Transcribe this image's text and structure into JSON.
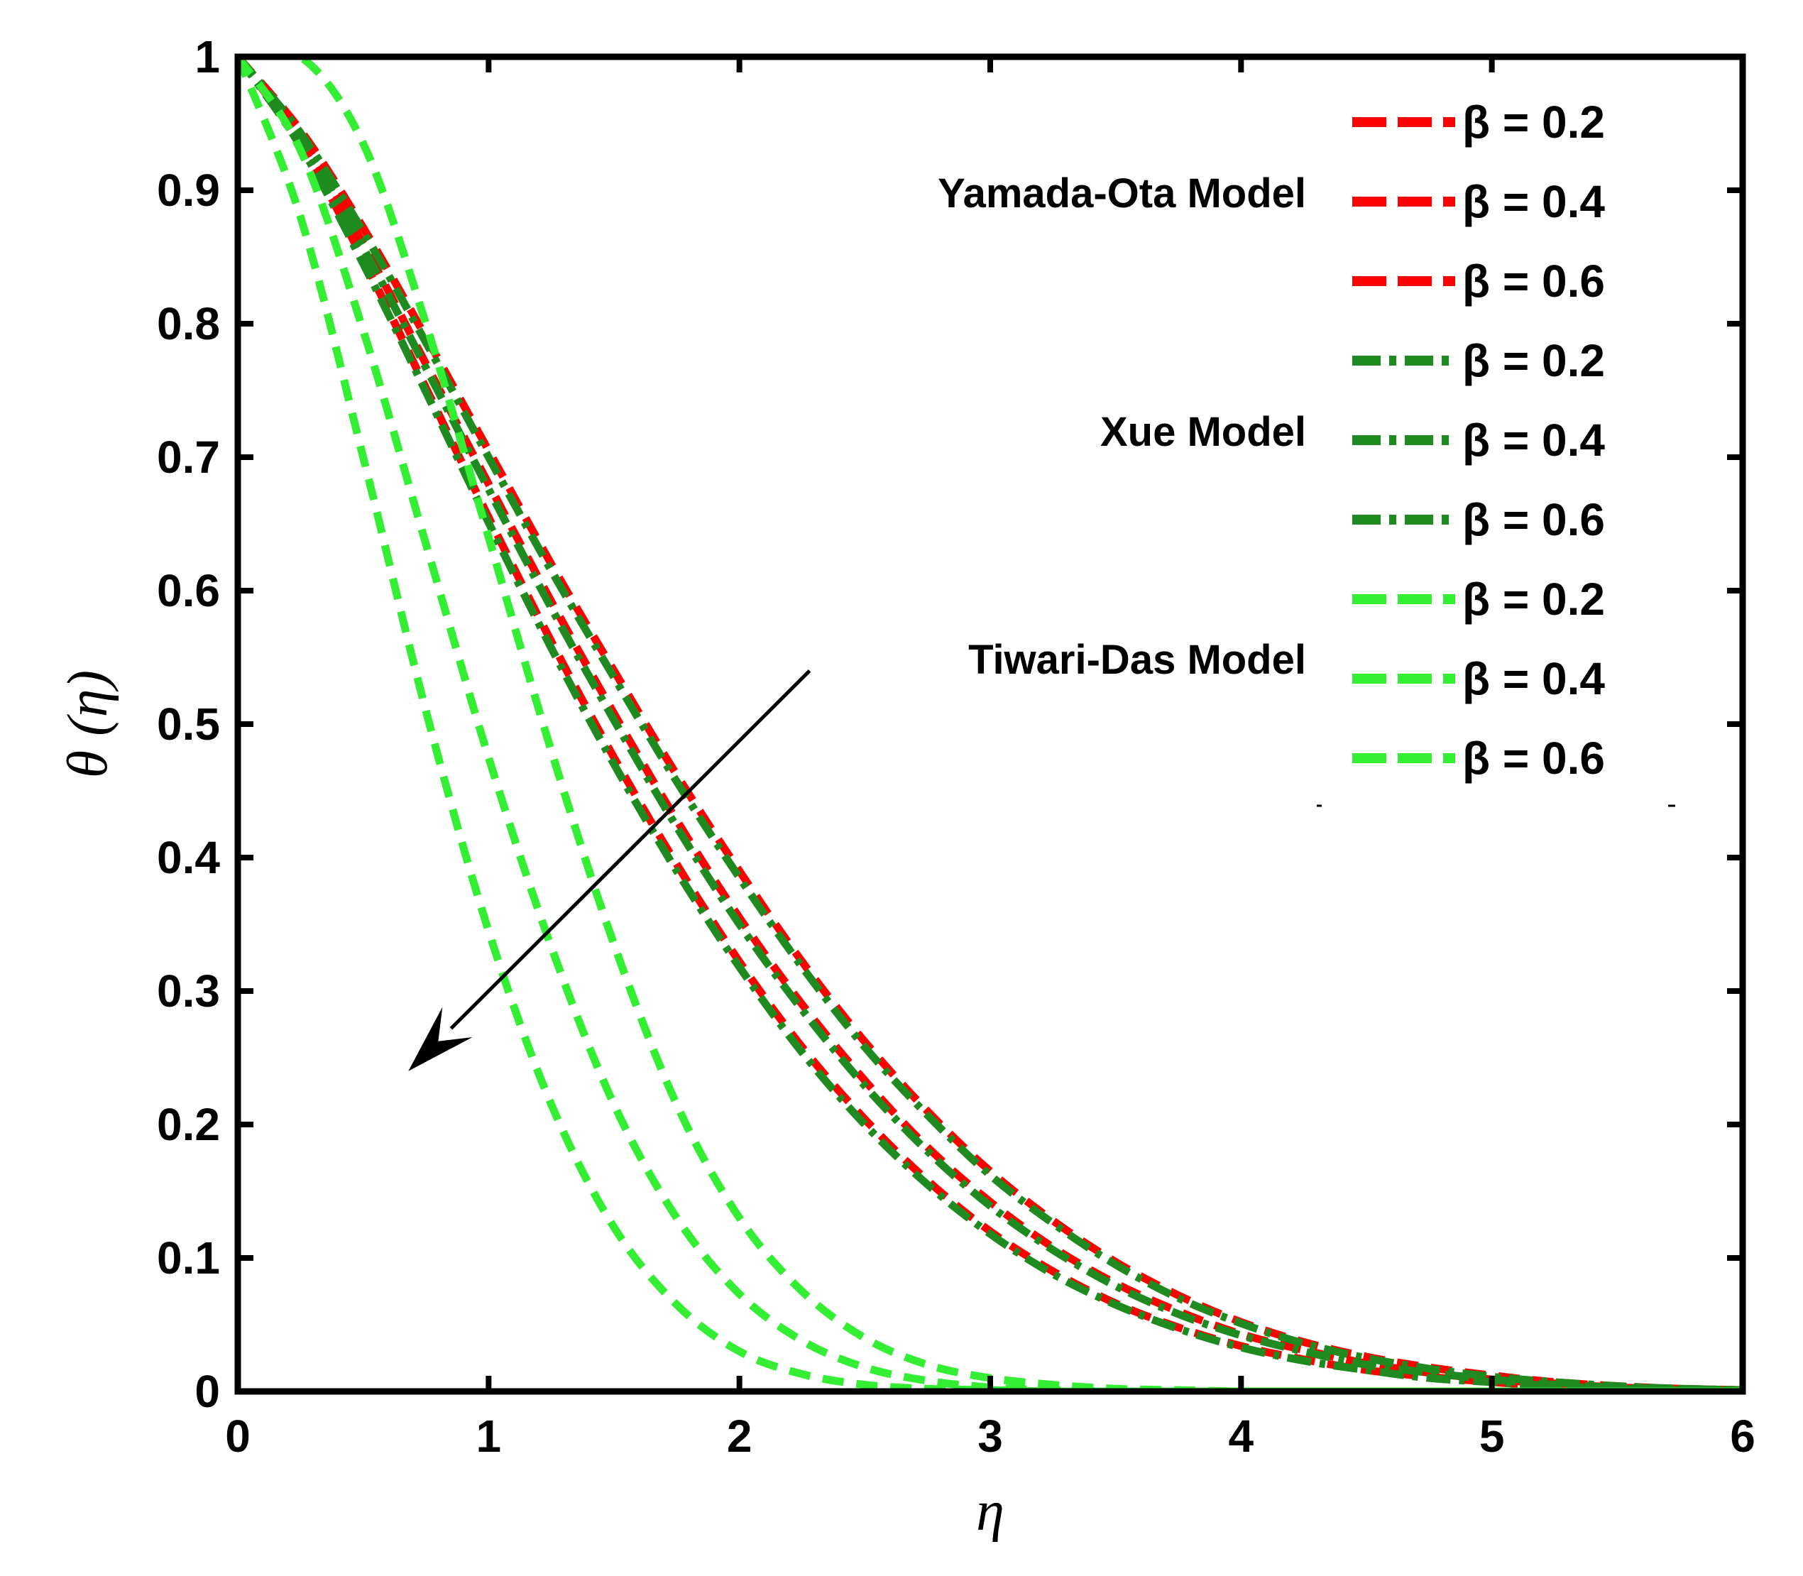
{
  "chart_data": {
    "type": "line",
    "title": "",
    "xlabel": "η",
    "ylabel": "θ (η)",
    "xlim": [
      0,
      6
    ],
    "ylim": [
      0,
      1
    ],
    "grid": false,
    "xticks": [
      "0",
      "1",
      "2",
      "3",
      "4",
      "5",
      "6"
    ],
    "yticks": [
      "0",
      "0.1",
      "0.2",
      "0.3",
      "0.4",
      "0.5",
      "0.6",
      "0.7",
      "0.8",
      "0.9",
      "1"
    ],
    "x": [
      0,
      0.25,
      0.5,
      0.75,
      1,
      1.25,
      1.5,
      1.75,
      2,
      2.25,
      2.5,
      2.75,
      3,
      3.25,
      3.5,
      3.75,
      4,
      4.25,
      4.5,
      4.75,
      5,
      5.25,
      5.5,
      5.75,
      6
    ],
    "legend_position": "top-right",
    "groups": [
      {
        "label": "Yamada-Ota Model",
        "color": "#ff0000",
        "style": "dash"
      },
      {
        "label": "Xue Model",
        "color": "#1f8a1f",
        "style": "dashdot"
      },
      {
        "label": "Tiwari-Das Model",
        "color": "#33ee33",
        "style": "dash"
      }
    ],
    "series": [
      {
        "name": "β = 0.2",
        "model": "Yamada-Ota Model",
        "color": "#ff0000",
        "style": "dash",
        "values": [
          1.0,
          0.945,
          0.872,
          0.79,
          0.705,
          0.62,
          0.54,
          0.462,
          0.39,
          0.322,
          0.262,
          0.21,
          0.165,
          0.128,
          0.097,
          0.072,
          0.052,
          0.037,
          0.026,
          0.018,
          0.012,
          0.007,
          0.004,
          0.002,
          0.001
        ]
      },
      {
        "name": "β = 0.4",
        "model": "Yamada-Ota Model",
        "color": "#ff0000",
        "style": "dash",
        "values": [
          1.0,
          0.94,
          0.86,
          0.77,
          0.68,
          0.592,
          0.508,
          0.428,
          0.355,
          0.29,
          0.233,
          0.183,
          0.142,
          0.108,
          0.081,
          0.06,
          0.043,
          0.031,
          0.021,
          0.014,
          0.009,
          0.006,
          0.003,
          0.002,
          0.001
        ]
      },
      {
        "name": "β = 0.6",
        "model": "Yamada-Ota Model",
        "color": "#ff0000",
        "style": "dash",
        "values": [
          1.0,
          0.935,
          0.848,
          0.752,
          0.655,
          0.562,
          0.475,
          0.395,
          0.322,
          0.258,
          0.204,
          0.158,
          0.12,
          0.09,
          0.066,
          0.048,
          0.034,
          0.024,
          0.016,
          0.011,
          0.007,
          0.004,
          0.003,
          0.001,
          0.001
        ]
      },
      {
        "name": "β = 0.2",
        "model": "Xue Model",
        "color": "#1f8a1f",
        "style": "dashdot",
        "values": [
          1.0,
          0.943,
          0.869,
          0.786,
          0.7,
          0.615,
          0.535,
          0.457,
          0.385,
          0.318,
          0.258,
          0.207,
          0.162,
          0.126,
          0.095,
          0.07,
          0.051,
          0.036,
          0.025,
          0.017,
          0.011,
          0.007,
          0.004,
          0.002,
          0.001
        ]
      },
      {
        "name": "β = 0.4",
        "model": "Xue Model",
        "color": "#1f8a1f",
        "style": "dashdot",
        "values": [
          1.0,
          0.938,
          0.857,
          0.767,
          0.676,
          0.587,
          0.503,
          0.423,
          0.35,
          0.286,
          0.229,
          0.18,
          0.139,
          0.106,
          0.079,
          0.058,
          0.042,
          0.03,
          0.02,
          0.014,
          0.009,
          0.005,
          0.003,
          0.002,
          0.001
        ]
      },
      {
        "name": "β = 0.6",
        "model": "Xue Model",
        "color": "#1f8a1f",
        "style": "dashdot",
        "values": [
          1.0,
          0.933,
          0.845,
          0.749,
          0.651,
          0.557,
          0.47,
          0.39,
          0.318,
          0.254,
          0.2,
          0.155,
          0.118,
          0.088,
          0.065,
          0.047,
          0.033,
          0.023,
          0.016,
          0.01,
          0.007,
          0.004,
          0.002,
          0.001,
          0.001
        ]
      },
      {
        "name": "β = 0.2",
        "model": "Tiwari-Das Model",
        "color": "#33ee33",
        "style": "dash",
        "values": [
          1.0,
          1.0,
          0.935,
          0.8,
          0.64,
          0.48,
          0.335,
          0.215,
          0.13,
          0.075,
          0.04,
          0.02,
          0.01,
          0.005,
          0.002,
          0.001,
          0.0,
          0.0,
          0.0,
          0.0,
          0.0,
          0.0,
          0.0,
          0.0,
          0.0
        ]
      },
      {
        "name": "β = 0.4",
        "model": "Tiwari-Das Model",
        "color": "#33ee33",
        "style": "dash",
        "values": [
          1.0,
          0.93,
          0.795,
          0.635,
          0.475,
          0.333,
          0.215,
          0.13,
          0.073,
          0.038,
          0.018,
          0.008,
          0.003,
          0.001,
          0.0,
          0.0,
          0.0,
          0.0,
          0.0,
          0.0,
          0.0,
          0.0,
          0.0,
          0.0,
          0.0
        ]
      },
      {
        "name": "β = 0.6",
        "model": "Tiwari-Das Model",
        "color": "#33ee33",
        "style": "dash",
        "values": [
          1.0,
          0.88,
          0.7,
          0.51,
          0.345,
          0.215,
          0.123,
          0.065,
          0.03,
          0.013,
          0.005,
          0.002,
          0.001,
          0.0,
          0.0,
          0.0,
          0.0,
          0.0,
          0.0,
          0.0,
          0.0,
          0.0,
          0.0,
          0.0,
          0.0
        ]
      }
    ],
    "annotations": [
      {
        "type": "arrow",
        "description": "increasing β",
        "from": {
          "x": 2.28,
          "y": 0.54
        },
        "to": {
          "x": 0.68,
          "y": 0.24
        }
      }
    ]
  }
}
